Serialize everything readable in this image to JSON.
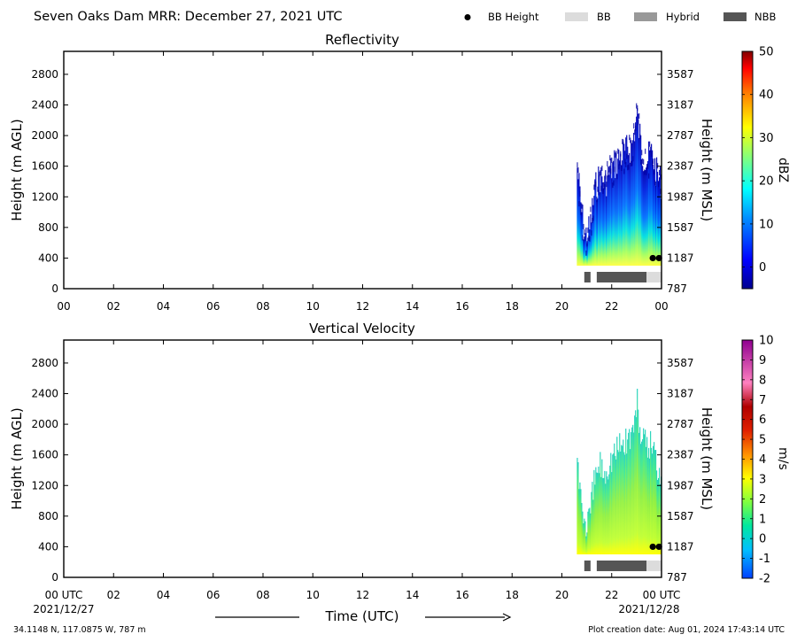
{
  "header": {
    "title": "Seven Oaks Dam MRR:  December 27, 2021 UTC",
    "legend": [
      {
        "label": "BB Height",
        "kind": "dot",
        "color": "#000000"
      },
      {
        "label": "BB",
        "kind": "box",
        "color": "#dcdcdc"
      },
      {
        "label": "Hybrid",
        "kind": "box",
        "color": "#999999"
      },
      {
        "label": "NBB",
        "kind": "box",
        "color": "#555555"
      }
    ]
  },
  "footer": {
    "time_label": "Time (UTC)",
    "start_date": "2021/12/27",
    "end_date": "2021/12/28",
    "location": "34.1148 N, 117.0875 W, 787 m",
    "creation": "Plot creation date: Aug 01, 2024 17:43:14 UTC"
  },
  "chart_data": [
    {
      "type": "heatmap",
      "title": "Reflectivity",
      "ylabel": "Height (m AGL)",
      "y2label": "Height (m MSL)",
      "colorbar_label": "dBZ",
      "xlim": [
        0,
        24
      ],
      "x_ticks": [
        "00",
        "02",
        "04",
        "06",
        "08",
        "10",
        "12",
        "14",
        "16",
        "18",
        "20",
        "22",
        "00"
      ],
      "ylim": [
        0,
        3100
      ],
      "y_ticks": [
        0,
        400,
        800,
        1200,
        1600,
        2000,
        2400,
        2800
      ],
      "y2_ticks": [
        787,
        1187,
        1587,
        1987,
        2387,
        2787,
        3187,
        3587
      ],
      "colorbar": {
        "min": -5,
        "max": 50,
        "ticks": [
          0,
          10,
          20,
          30,
          40,
          50
        ]
      },
      "data_start_hour": 20.6,
      "data_end_hour": 24.0,
      "echo_base_m": 300,
      "echo_top_envelope": [
        {
          "x": 20.6,
          "y": 1800
        },
        {
          "x": 20.75,
          "y": 1300
        },
        {
          "x": 20.9,
          "y": 900
        },
        {
          "x": 21.1,
          "y": 1000
        },
        {
          "x": 21.3,
          "y": 1500
        },
        {
          "x": 21.5,
          "y": 1700
        },
        {
          "x": 21.7,
          "y": 1600
        },
        {
          "x": 21.9,
          "y": 1750
        },
        {
          "x": 22.2,
          "y": 1900
        },
        {
          "x": 22.5,
          "y": 2000
        },
        {
          "x": 22.8,
          "y": 2100
        },
        {
          "x": 23.0,
          "y": 2500
        },
        {
          "x": 23.2,
          "y": 2000
        },
        {
          "x": 23.4,
          "y": 1900
        },
        {
          "x": 23.6,
          "y": 2000
        },
        {
          "x": 23.8,
          "y": 1700
        },
        {
          "x": 24.0,
          "y": 1600
        }
      ],
      "bb_height_points": [
        {
          "x": 23.65,
          "y": 400
        },
        {
          "x": 23.9,
          "y": 400
        }
      ],
      "bb_type_bars": [
        {
          "start": 20.9,
          "end": 21.15,
          "kind": "NBB"
        },
        {
          "start": 21.4,
          "end": 23.4,
          "kind": "NBB"
        },
        {
          "start": 23.4,
          "end": 24.0,
          "kind": "BB"
        }
      ]
    },
    {
      "type": "heatmap",
      "title": "Vertical Velocity",
      "ylabel": "Height (m AGL)",
      "y2label": "Height (m MSL)",
      "colorbar_label": "m/s",
      "xlim": [
        0,
        24
      ],
      "x_ticks": [
        "00 UTC",
        "02",
        "04",
        "06",
        "08",
        "10",
        "12",
        "14",
        "16",
        "18",
        "20",
        "22",
        "00 UTC"
      ],
      "ylim": [
        0,
        3100
      ],
      "y_ticks": [
        0,
        400,
        800,
        1200,
        1600,
        2000,
        2400,
        2800
      ],
      "y2_ticks": [
        787,
        1187,
        1587,
        1987,
        2387,
        2787,
        3187,
        3587
      ],
      "colorbar": {
        "min": -2,
        "max": 10,
        "ticks": [
          -2,
          -1,
          0,
          1,
          2,
          3,
          4,
          5,
          6,
          7,
          8,
          9,
          10
        ]
      },
      "data_start_hour": 20.6,
      "data_end_hour": 24.0,
      "echo_base_m": 300,
      "echo_top_envelope": [
        {
          "x": 20.6,
          "y": 1800
        },
        {
          "x": 20.75,
          "y": 1300
        },
        {
          "x": 20.9,
          "y": 900
        },
        {
          "x": 21.1,
          "y": 1000
        },
        {
          "x": 21.3,
          "y": 1500
        },
        {
          "x": 21.5,
          "y": 1700
        },
        {
          "x": 21.7,
          "y": 1600
        },
        {
          "x": 21.9,
          "y": 1750
        },
        {
          "x": 22.2,
          "y": 1900
        },
        {
          "x": 22.5,
          "y": 2000
        },
        {
          "x": 22.8,
          "y": 2100
        },
        {
          "x": 23.0,
          "y": 2500
        },
        {
          "x": 23.2,
          "y": 2000
        },
        {
          "x": 23.4,
          "y": 1900
        },
        {
          "x": 23.6,
          "y": 2000
        },
        {
          "x": 23.8,
          "y": 1700
        },
        {
          "x": 24.0,
          "y": 1600
        }
      ],
      "bb_height_points": [
        {
          "x": 23.65,
          "y": 400
        },
        {
          "x": 23.9,
          "y": 400
        }
      ],
      "bb_type_bars": [
        {
          "start": 20.9,
          "end": 21.15,
          "kind": "NBB"
        },
        {
          "start": 21.4,
          "end": 23.4,
          "kind": "NBB"
        },
        {
          "start": 23.4,
          "end": 24.0,
          "kind": "BB"
        }
      ]
    }
  ]
}
